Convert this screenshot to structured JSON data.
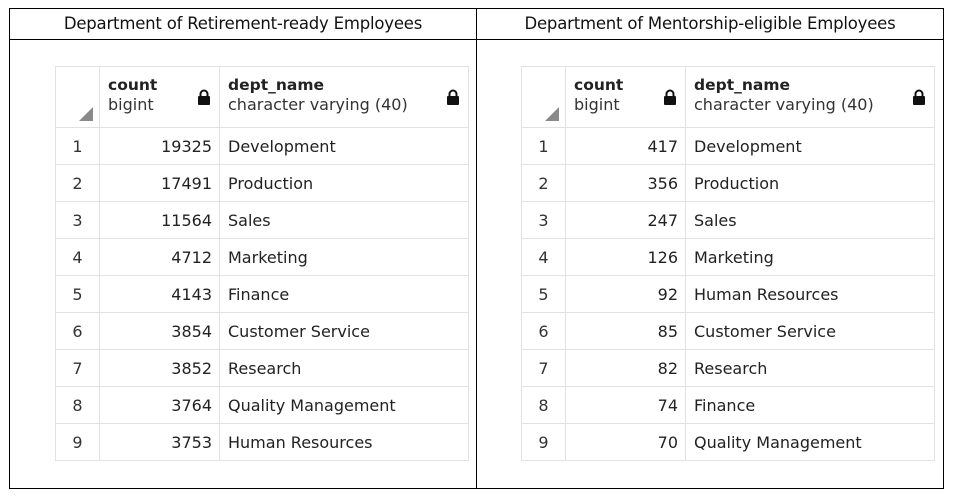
{
  "panels": [
    {
      "title": "Department of Retirement-ready Employees",
      "columns": [
        {
          "name": "count",
          "type": "bigint"
        },
        {
          "name": "dept_name",
          "type": "character varying (40)"
        }
      ],
      "rows": [
        {
          "idx": "1",
          "count": "19325",
          "dept": "Development"
        },
        {
          "idx": "2",
          "count": "17491",
          "dept": "Production"
        },
        {
          "idx": "3",
          "count": "11564",
          "dept": "Sales"
        },
        {
          "idx": "4",
          "count": "4712",
          "dept": "Marketing"
        },
        {
          "idx": "5",
          "count": "4143",
          "dept": "Finance"
        },
        {
          "idx": "6",
          "count": "3854",
          "dept": "Customer Service"
        },
        {
          "idx": "7",
          "count": "3852",
          "dept": "Research"
        },
        {
          "idx": "8",
          "count": "3764",
          "dept": "Quality Management"
        },
        {
          "idx": "9",
          "count": "3753",
          "dept": "Human Resources"
        }
      ]
    },
    {
      "title": "Department of Mentorship-eligible Employees",
      "columns": [
        {
          "name": "count",
          "type": "bigint"
        },
        {
          "name": "dept_name",
          "type": "character varying (40)"
        }
      ],
      "rows": [
        {
          "idx": "1",
          "count": "417",
          "dept": "Development"
        },
        {
          "idx": "2",
          "count": "356",
          "dept": "Production"
        },
        {
          "idx": "3",
          "count": "247",
          "dept": "Sales"
        },
        {
          "idx": "4",
          "count": "126",
          "dept": "Marketing"
        },
        {
          "idx": "5",
          "count": "92",
          "dept": "Human Resources"
        },
        {
          "idx": "6",
          "count": "85",
          "dept": "Customer Service"
        },
        {
          "idx": "7",
          "count": "82",
          "dept": "Research"
        },
        {
          "idx": "8",
          "count": "74",
          "dept": "Finance"
        },
        {
          "idx": "9",
          "count": "70",
          "dept": "Quality Management"
        }
      ]
    }
  ],
  "icons": {
    "lock": "lock-icon",
    "corner": "sort-corner-icon"
  }
}
